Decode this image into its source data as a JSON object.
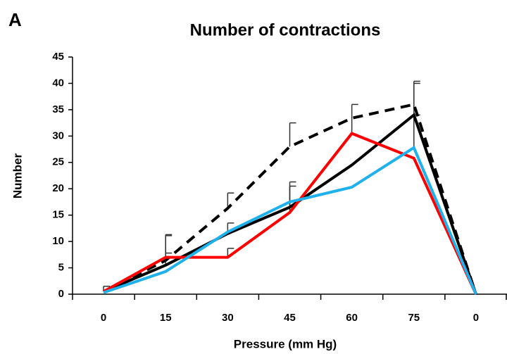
{
  "chart_data": {
    "type": "line",
    "panel_label": "A",
    "title": "Number of contractions",
    "x_label": "Pressure (mm Hg)",
    "y_label": "Number",
    "categories": [
      "0",
      "15",
      "30",
      "45",
      "60",
      "75",
      "0"
    ],
    "ylim": [
      0,
      45
    ],
    "yticks": [
      0,
      5,
      10,
      15,
      20,
      25,
      30,
      35,
      40,
      45
    ],
    "series": [
      {
        "color": "#000000",
        "dash": true,
        "values": [
          0.5,
          6.4,
          16.3,
          28,
          33.4,
          36,
          0
        ],
        "errors": [
          null,
          4.7,
          2.9,
          4.5,
          null,
          4.4,
          null
        ]
      },
      {
        "color": "#000000",
        "dash": false,
        "values": [
          0.5,
          5.5,
          11.5,
          16.5,
          24.5,
          34,
          0
        ],
        "errors": [
          1,
          2.3,
          2,
          4.8,
          null,
          6,
          null
        ]
      },
      {
        "color": "#ff0000",
        "dash": false,
        "values": [
          0.5,
          7,
          7,
          15.5,
          30.5,
          25.8,
          0
        ],
        "errors": [
          null,
          4.3,
          1.7,
          5,
          5.5,
          null,
          null
        ]
      },
      {
        "color": "#1fb1ec",
        "dash": false,
        "values": [
          0.3,
          4.3,
          11.8,
          17.5,
          20.3,
          27.8,
          0
        ],
        "errors": [
          null,
          null,
          null,
          null,
          null,
          6.2,
          null
        ]
      }
    ]
  }
}
